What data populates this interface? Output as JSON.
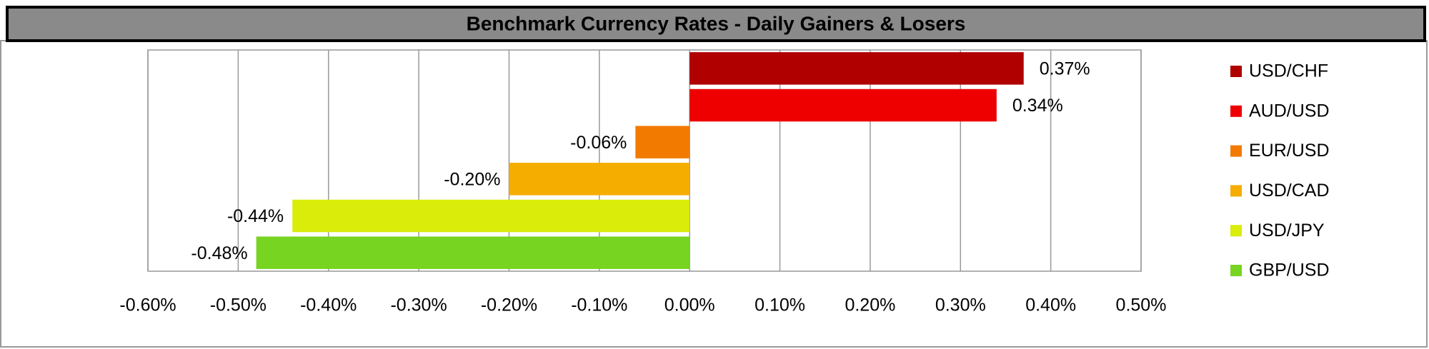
{
  "chart_data": {
    "type": "bar",
    "orientation": "horizontal",
    "title": "Benchmark Currency Rates - Daily Gainers & Losers",
    "categories": [
      "USD/CHF",
      "AUD/USD",
      "EUR/USD",
      "USD/CAD",
      "USD/JPY",
      "GBP/USD"
    ],
    "values": [
      0.37,
      0.34,
      -0.06,
      -0.2,
      -0.44,
      -0.48
    ],
    "value_labels": [
      "0.37%",
      "0.34%",
      "-0.06%",
      "-0.20%",
      "-0.44%",
      "-0.48%"
    ],
    "colors": [
      "#b00000",
      "#ee0000",
      "#f27a00",
      "#f5ad00",
      "#d9ec0a",
      "#77d420"
    ],
    "xlim": [
      -0.6,
      0.5
    ],
    "xticks": [
      {
        "value": -0.6,
        "label": "-0.60%"
      },
      {
        "value": -0.5,
        "label": "-0.50%"
      },
      {
        "value": -0.4,
        "label": "-0.40%"
      },
      {
        "value": -0.3,
        "label": "-0.30%"
      },
      {
        "value": -0.2,
        "label": "-0.20%"
      },
      {
        "value": -0.1,
        "label": "-0.10%"
      },
      {
        "value": 0,
        "label": "0.00%"
      },
      {
        "value": 0.1,
        "label": "0.10%"
      },
      {
        "value": 0.2,
        "label": "0.20%"
      },
      {
        "value": 0.3,
        "label": "0.30%"
      },
      {
        "value": 0.4,
        "label": "0.40%"
      },
      {
        "value": 0.5,
        "label": "0.50%"
      }
    ],
    "grid": true,
    "legend": "right"
  }
}
